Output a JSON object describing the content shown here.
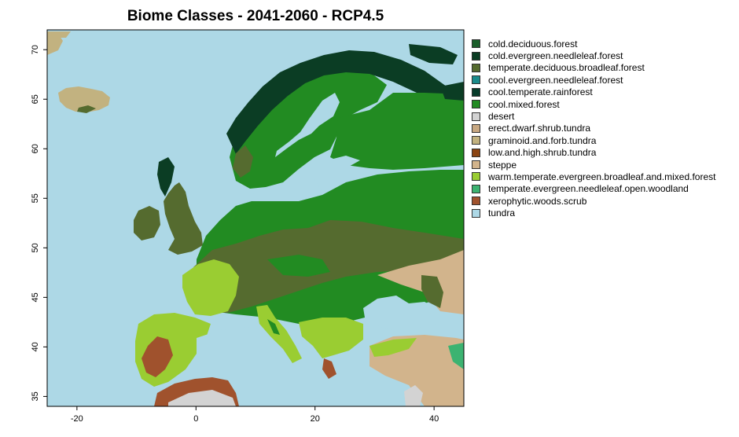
{
  "chart_data": {
    "type": "heatmap",
    "title": "Biome Classes - 2041-2060 - RCP4.5",
    "x_ticks": [
      -20,
      0,
      20,
      40
    ],
    "y_ticks": [
      35,
      40,
      45,
      50,
      55,
      60,
      65,
      70
    ],
    "xlim": [
      -25,
      45
    ],
    "ylim": [
      34,
      72
    ],
    "legend": [
      {
        "label": "cold.deciduous.forest",
        "color": "#1a5e2a"
      },
      {
        "label": "cold.evergreen.needleleaf.forest",
        "color": "#0b3d24"
      },
      {
        "label": "temperate.deciduous.broadleaf.forest",
        "color": "#556b2f"
      },
      {
        "label": "cool.evergreen.needleleaf.forest",
        "color": "#1b8b8b"
      },
      {
        "label": "cool.temperate.rainforest",
        "color": "#073b2a"
      },
      {
        "label": "cool.mixed.forest",
        "color": "#228b22"
      },
      {
        "label": "desert",
        "color": "#d3d3d3"
      },
      {
        "label": "erect.dwarf.shrub.tundra",
        "color": "#c8a882"
      },
      {
        "label": "graminoid.and.forb.tundra",
        "color": "#c2b280"
      },
      {
        "label": "low.and.high.shrub.tundra",
        "color": "#8b4513"
      },
      {
        "label": "steppe",
        "color": "#d2b48c"
      },
      {
        "label": "warm.temperate.evergreen.broadleaf.and.mixed.forest",
        "color": "#9acd32"
      },
      {
        "label": "temperate.evergreen.needleleaf.open.woodland",
        "color": "#3cb371"
      },
      {
        "label": "xerophytic.woods.scrub",
        "color": "#a0522d"
      },
      {
        "label": "tundra",
        "color": "#add8e6"
      }
    ]
  }
}
